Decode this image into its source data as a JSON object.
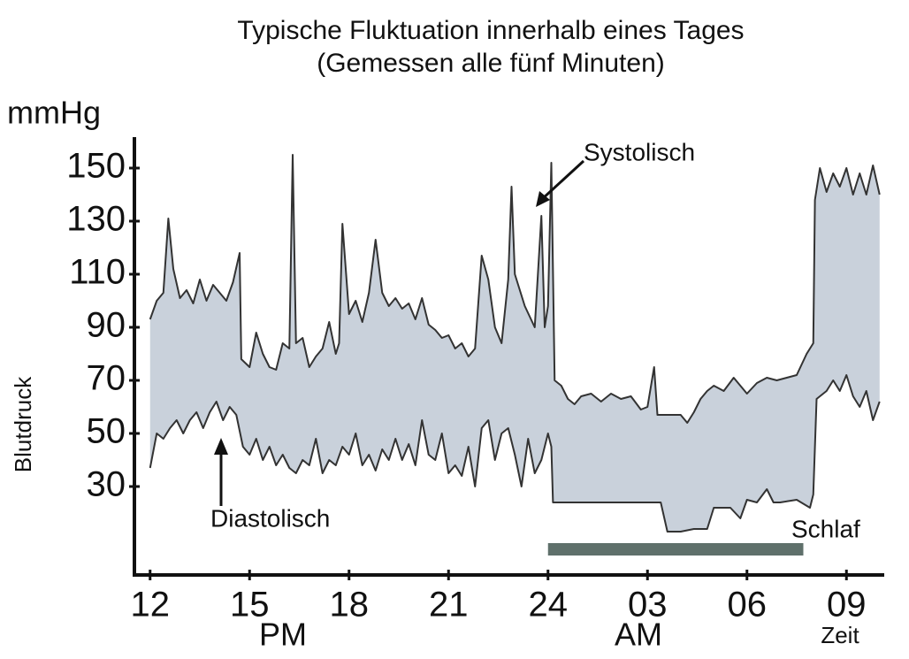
{
  "chart_data": {
    "type": "line",
    "title": "Typische Fluktuation innerhalb eines Tages",
    "subtitle": "(Gemessen alle fünf Minuten)",
    "unit_label": "mmHg",
    "y_label": "Blutdruck",
    "x_label": "Zeit",
    "period_labels": [
      "PM",
      "AM"
    ],
    "xlim": [
      11.5,
      34.1
    ],
    "ylim": [
      -3,
      162
    ],
    "xticks": [
      12,
      15,
      18,
      21,
      24,
      {
        "value": 27,
        "label": "03"
      },
      {
        "value": 30,
        "label": "06"
      },
      {
        "value": 33,
        "label": "09"
      }
    ],
    "yticks": [
      30,
      50,
      70,
      90,
      110,
      130,
      150
    ],
    "fill_color": "#c9d1db",
    "series": [
      {
        "name": "Systolisch",
        "color": "#333333",
        "x": [
          12.0,
          12.2,
          12.4,
          12.55,
          12.7,
          12.9,
          13.1,
          13.3,
          13.5,
          13.7,
          13.9,
          14.1,
          14.3,
          14.5,
          14.7,
          14.75,
          15.0,
          15.2,
          15.4,
          15.6,
          15.8,
          16.0,
          16.2,
          16.3,
          16.4,
          16.6,
          16.8,
          17.0,
          17.2,
          17.4,
          17.6,
          17.7,
          17.8,
          18.0,
          18.2,
          18.4,
          18.6,
          18.8,
          19.0,
          19.2,
          19.4,
          19.6,
          19.8,
          20.0,
          20.2,
          20.4,
          20.6,
          20.8,
          21.0,
          21.2,
          21.4,
          21.6,
          21.8,
          22.0,
          22.2,
          22.4,
          22.6,
          22.8,
          22.9,
          23.0,
          23.3,
          23.6,
          23.8,
          23.9,
          24.0,
          24.1,
          24.2,
          24.4,
          24.6,
          24.8,
          25.0,
          25.3,
          25.6,
          25.9,
          26.2,
          26.5,
          26.8,
          27.0,
          27.2,
          27.3,
          27.5,
          28.0,
          28.2,
          28.4,
          28.6,
          28.8,
          29.0,
          29.3,
          29.6,
          29.8,
          30.0,
          30.3,
          30.6,
          30.9,
          31.2,
          31.5,
          31.8,
          32.0,
          32.05,
          32.2,
          32.4,
          32.6,
          32.8,
          33.0,
          33.2,
          33.4,
          33.6,
          33.8,
          34.0
        ],
        "values": [
          93,
          100,
          103,
          131,
          112,
          101,
          104,
          99,
          108,
          100,
          106,
          103,
          100,
          107,
          118,
          78,
          75,
          88,
          80,
          75,
          74,
          84,
          82,
          155,
          84,
          86,
          75,
          79,
          82,
          92,
          80,
          84,
          129,
          95,
          100,
          92,
          103,
          123,
          103,
          98,
          101,
          97,
          99,
          93,
          101,
          91,
          89,
          86,
          87,
          82,
          84,
          79,
          82,
          117,
          108,
          90,
          84,
          108,
          143,
          110,
          98,
          90,
          132,
          90,
          98,
          152,
          70,
          68,
          63,
          61,
          64,
          65,
          62,
          65,
          63,
          64,
          59,
          60,
          75,
          57,
          57,
          57,
          54,
          58,
          63,
          66,
          68,
          66,
          71,
          68,
          65,
          69,
          71,
          70,
          71,
          72,
          80,
          84,
          138,
          150,
          141,
          148,
          143,
          150,
          140,
          148,
          140,
          151,
          140
        ]
      },
      {
        "name": "Diastolisch",
        "color": "#333333",
        "x": [
          12.0,
          12.2,
          12.4,
          12.6,
          12.8,
          13.0,
          13.2,
          13.4,
          13.6,
          13.8,
          14.0,
          14.2,
          14.4,
          14.6,
          14.8,
          15.0,
          15.2,
          15.4,
          15.6,
          15.8,
          16.0,
          16.2,
          16.4,
          16.6,
          16.8,
          17.0,
          17.2,
          17.4,
          17.6,
          17.8,
          18.0,
          18.2,
          18.4,
          18.6,
          18.8,
          19.0,
          19.2,
          19.4,
          19.6,
          19.8,
          20.0,
          20.2,
          20.4,
          20.6,
          20.8,
          21.0,
          21.2,
          21.4,
          21.6,
          21.8,
          22.0,
          22.2,
          22.4,
          22.6,
          22.8,
          23.0,
          23.2,
          23.4,
          23.6,
          23.8,
          24.0,
          24.1,
          24.15,
          25.0,
          26.0,
          27.0,
          27.4,
          27.6,
          28.0,
          28.4,
          28.8,
          29.0,
          29.5,
          29.8,
          30.0,
          30.3,
          30.6,
          30.8,
          31.0,
          31.5,
          31.9,
          32.0,
          32.1,
          32.4,
          32.6,
          32.8,
          33.0,
          33.2,
          33.4,
          33.6,
          33.8,
          34.0
        ],
        "values": [
          37,
          50,
          48,
          52,
          55,
          50,
          55,
          58,
          52,
          58,
          62,
          55,
          60,
          57,
          45,
          42,
          48,
          40,
          45,
          38,
          42,
          37,
          35,
          40,
          38,
          48,
          35,
          40,
          38,
          45,
          42,
          50,
          38,
          42,
          36,
          44,
          40,
          48,
          40,
          46,
          38,
          55,
          42,
          40,
          50,
          35,
          38,
          34,
          45,
          30,
          52,
          55,
          40,
          50,
          52,
          42,
          30,
          48,
          35,
          40,
          50,
          45,
          24,
          24,
          24,
          24,
          24,
          13,
          13,
          14,
          14,
          22,
          22,
          18,
          25,
          24,
          29,
          24,
          24,
          25,
          22,
          27,
          63,
          66,
          70,
          66,
          72,
          64,
          60,
          66,
          55,
          62
        ]
      }
    ],
    "sleep": {
      "label": "Schlaf",
      "start": 24,
      "end": 31.7,
      "color": "#5f706b"
    }
  }
}
